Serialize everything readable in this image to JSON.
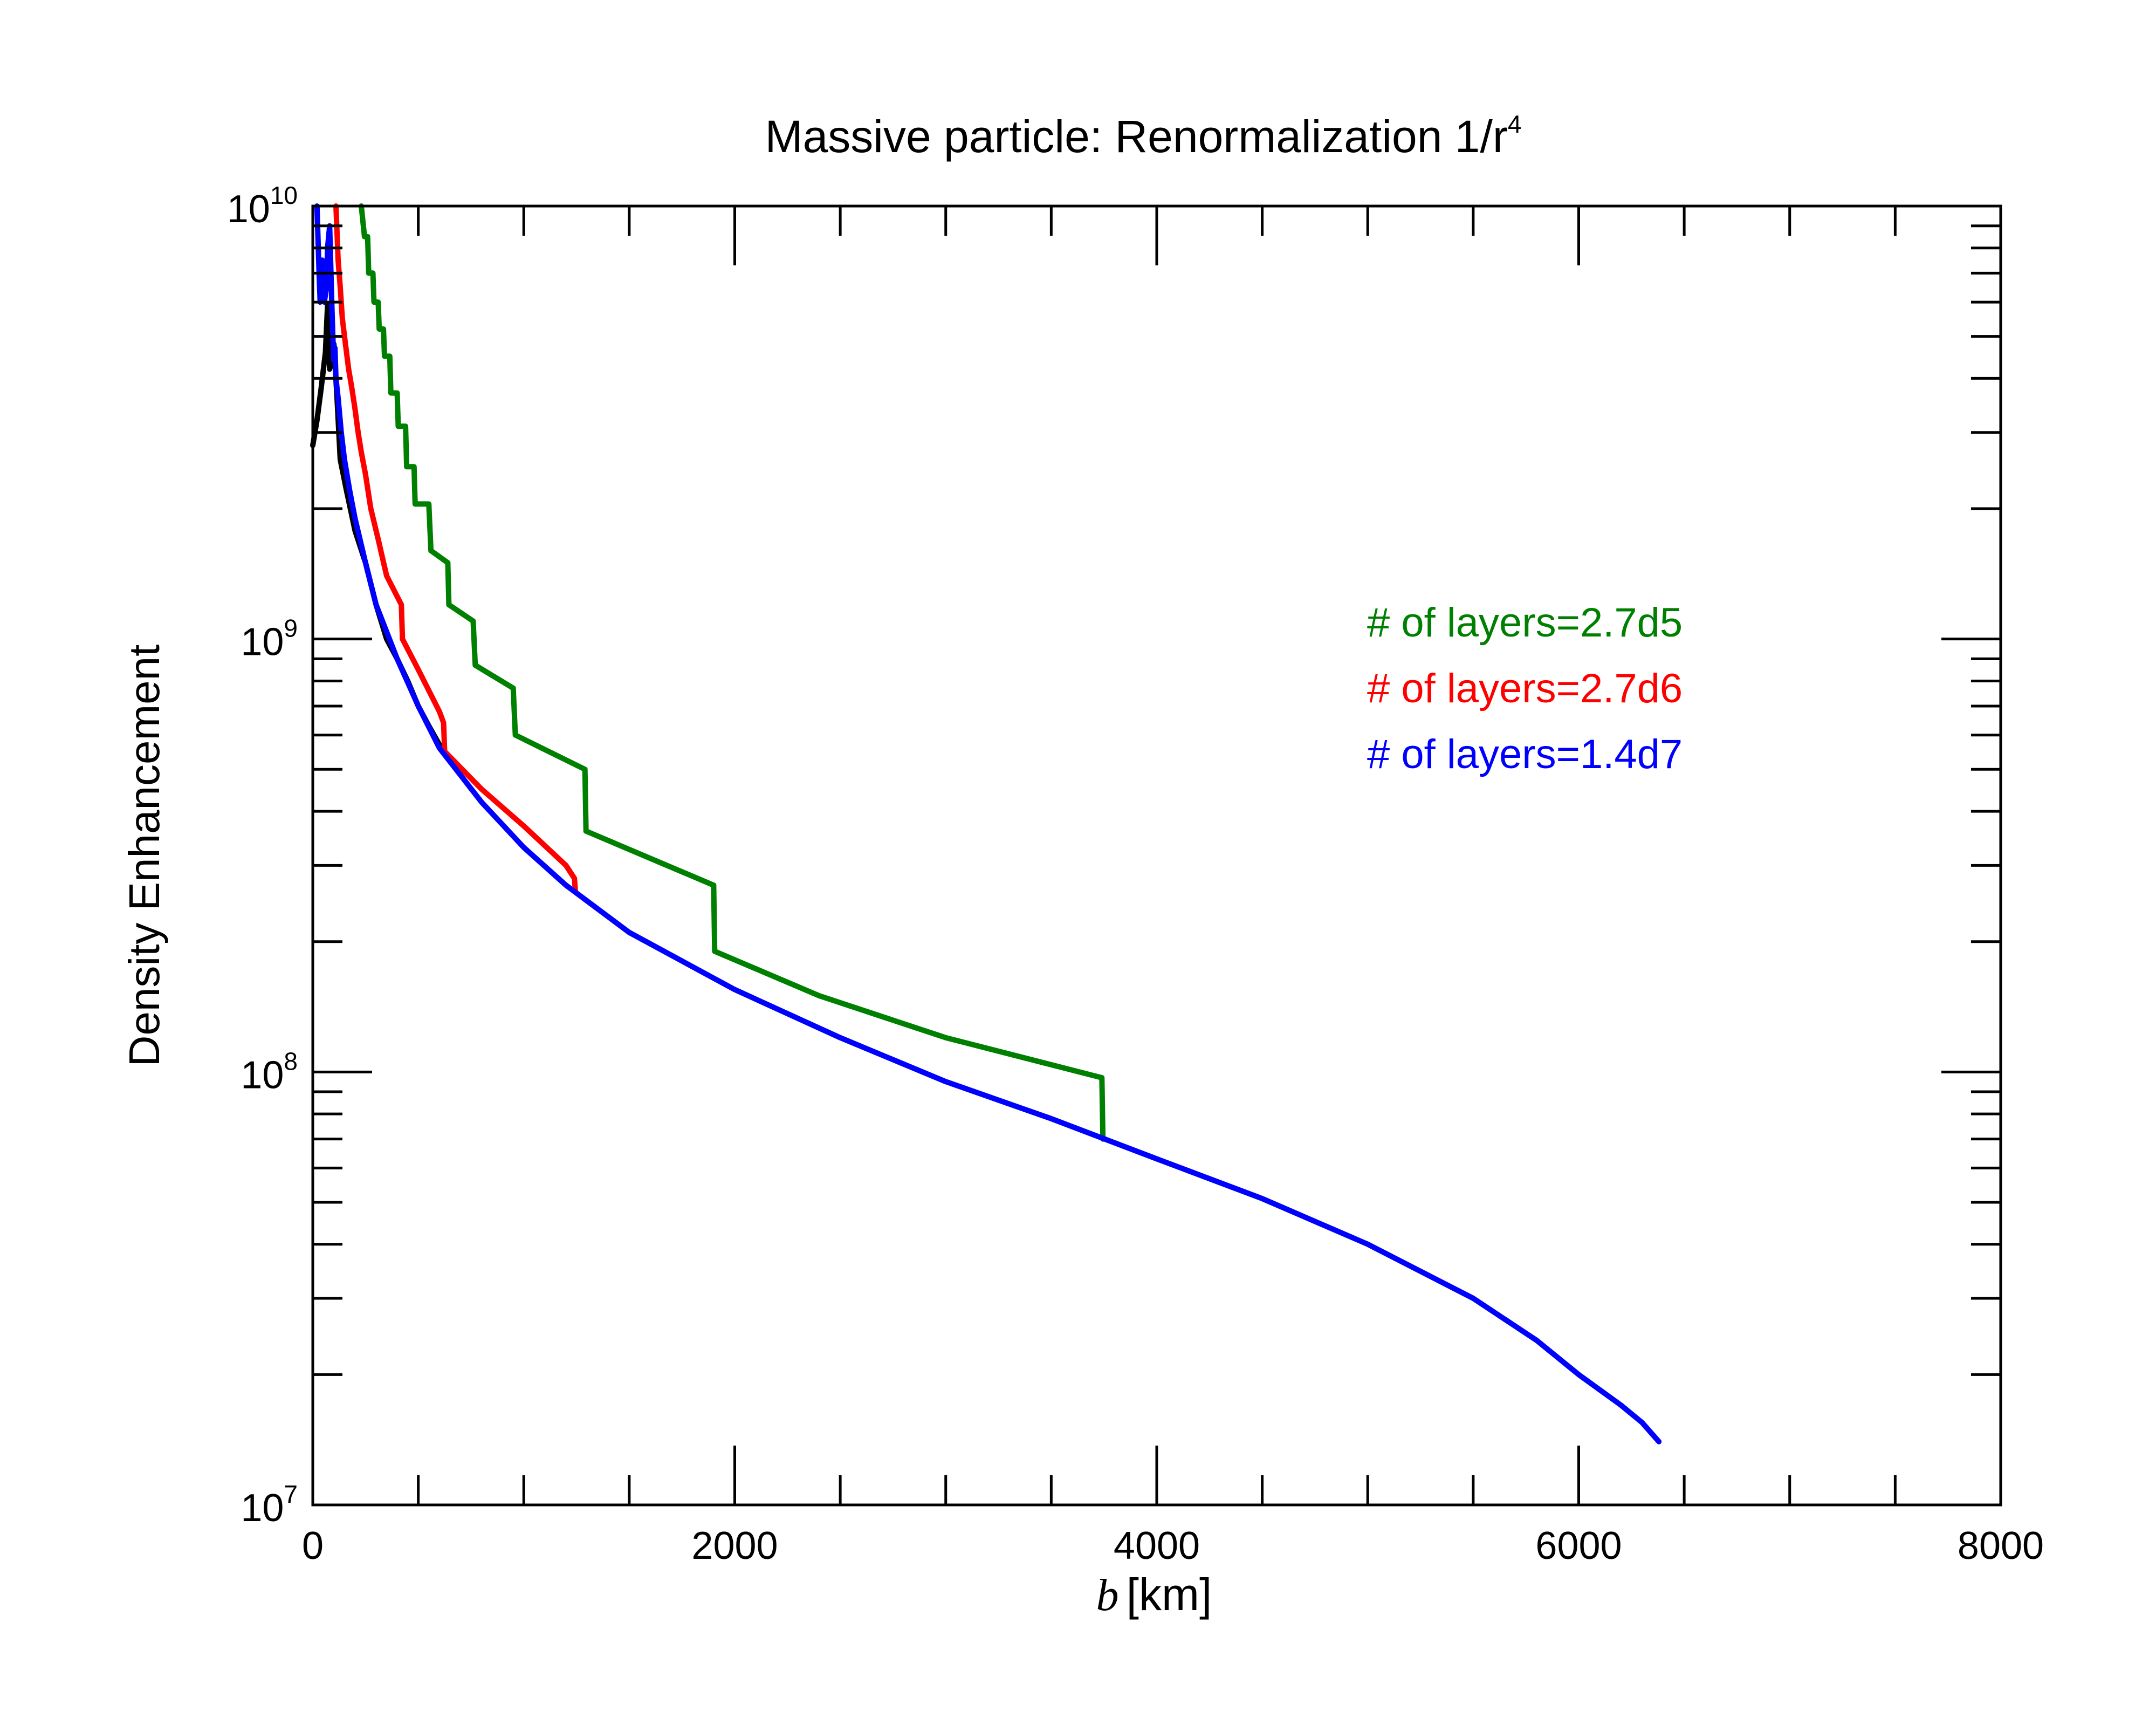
{
  "chart_data": {
    "type": "line",
    "title": "Massive particle: Renormalization 1/r",
    "title_superscript": "4",
    "xlabel_var": "b",
    "xlabel_unit": "[km]",
    "ylabel": "Density Enhancement",
    "xlim": [
      0,
      8000
    ],
    "ylim": [
      10000000,
      10000000000
    ],
    "yscale": "log",
    "x_ticks": [
      {
        "value": 0,
        "label": "0"
      },
      {
        "value": 2000,
        "label": "2000"
      },
      {
        "value": 4000,
        "label": "4000"
      },
      {
        "value": 6000,
        "label": "6000"
      },
      {
        "value": 8000,
        "label": "8000"
      }
    ],
    "y_ticks": [
      {
        "value": 10000000,
        "base": "10",
        "exp": "7"
      },
      {
        "value": 100000000,
        "base": "10",
        "exp": "8"
      },
      {
        "value": 1000000000,
        "base": "10",
        "exp": "9"
      },
      {
        "value": 10000000000,
        "base": "10",
        "exp": "10"
      }
    ],
    "legend_position": "upper-right",
    "series": [
      {
        "name": "black",
        "label": "",
        "color": "#000000",
        "points": [
          [
            0,
            2800000000
          ],
          [
            20,
            3200000000
          ],
          [
            40,
            3800000000
          ],
          [
            60,
            4600000000
          ],
          [
            70,
            5900000000
          ],
          [
            80,
            4200000000
          ],
          [
            100,
            4800000000
          ],
          [
            115,
            3600000000
          ],
          [
            130,
            2600000000
          ],
          [
            160,
            2200000000
          ],
          [
            200,
            1780000000
          ],
          [
            250,
            1500000000
          ],
          [
            300,
            1200000000
          ],
          [
            350,
            1000000000
          ],
          [
            400,
            900000000
          ],
          [
            450,
            800000000
          ],
          [
            500,
            700000000
          ],
          [
            550,
            630000000
          ],
          [
            600,
            570000000
          ]
        ]
      },
      {
        "name": "green",
        "label": "# of layers=2.7d5",
        "color": "#008000",
        "points": [
          [
            230,
            10000000000
          ],
          [
            245,
            8500000000
          ],
          [
            260,
            8500000000
          ],
          [
            265,
            7000000000
          ],
          [
            285,
            7000000000
          ],
          [
            290,
            6000000000
          ],
          [
            310,
            6000000000
          ],
          [
            315,
            5200000000
          ],
          [
            335,
            5200000000
          ],
          [
            340,
            4500000000
          ],
          [
            365,
            4500000000
          ],
          [
            370,
            3700000000
          ],
          [
            400,
            3700000000
          ],
          [
            405,
            3100000000
          ],
          [
            440,
            3100000000
          ],
          [
            445,
            2500000000
          ],
          [
            480,
            2500000000
          ],
          [
            485,
            2050000000
          ],
          [
            550,
            2050000000
          ],
          [
            560,
            1600000000
          ],
          [
            640,
            1500000000
          ],
          [
            645,
            1200000000
          ],
          [
            760,
            1100000000
          ],
          [
            770,
            870000000
          ],
          [
            950,
            770000000
          ],
          [
            960,
            600000000
          ],
          [
            1290,
            500000000
          ],
          [
            1295,
            360000000
          ],
          [
            1900,
            270000000
          ],
          [
            1905,
            190000000
          ],
          [
            2400,
            150000000
          ],
          [
            3000,
            120000000
          ],
          [
            3740,
            97000000
          ],
          [
            3745,
            70000000
          ]
        ]
      },
      {
        "name": "red",
        "label": "# of layers=2.7d6",
        "color": "#ff0000",
        "points": [
          [
            110,
            10000000000
          ],
          [
            120,
            7500000000
          ],
          [
            130,
            6500000000
          ],
          [
            140,
            5500000000
          ],
          [
            155,
            4800000000
          ],
          [
            170,
            4200000000
          ],
          [
            185,
            3800000000
          ],
          [
            200,
            3400000000
          ],
          [
            215,
            3000000000
          ],
          [
            230,
            2700000000
          ],
          [
            250,
            2400000000
          ],
          [
            275,
            2000000000
          ],
          [
            310,
            1700000000
          ],
          [
            350,
            1400000000
          ],
          [
            420,
            1200000000
          ],
          [
            425,
            1000000000
          ],
          [
            500,
            850000000
          ],
          [
            600,
            680000000
          ],
          [
            620,
            640000000
          ],
          [
            625,
            550000000
          ],
          [
            800,
            450000000
          ],
          [
            1000,
            370000000
          ],
          [
            1200,
            300000000
          ],
          [
            1240,
            280000000
          ],
          [
            1245,
            260000000
          ]
        ]
      },
      {
        "name": "blue",
        "label": "# of layers=1.4d7",
        "color": "#0000ff",
        "points": [
          [
            20,
            10000000000
          ],
          [
            30,
            7000000000
          ],
          [
            35,
            6000000000
          ],
          [
            45,
            7500000000
          ],
          [
            55,
            6000000000
          ],
          [
            65,
            6500000000
          ],
          [
            70,
            8000000000
          ],
          [
            80,
            9000000000
          ],
          [
            90,
            6000000000
          ],
          [
            95,
            5000000000
          ],
          [
            100,
            4400000000
          ],
          [
            105,
            4700000000
          ],
          [
            110,
            4000000000
          ],
          [
            120,
            3600000000
          ],
          [
            135,
            3000000000
          ],
          [
            150,
            2600000000
          ],
          [
            175,
            2200000000
          ],
          [
            200,
            1900000000
          ],
          [
            250,
            1500000000
          ],
          [
            300,
            1200000000
          ],
          [
            400,
            900000000
          ],
          [
            500,
            700000000
          ],
          [
            600,
            560000000
          ],
          [
            800,
            420000000
          ],
          [
            1000,
            330000000
          ],
          [
            1200,
            270000000
          ],
          [
            1500,
            210000000
          ],
          [
            2000,
            155000000
          ],
          [
            2500,
            120000000
          ],
          [
            3000,
            95000000
          ],
          [
            3500,
            78000000
          ],
          [
            4000,
            63000000
          ],
          [
            4500,
            51000000
          ],
          [
            5000,
            40000000
          ],
          [
            5500,
            30000000
          ],
          [
            5800,
            24000000
          ],
          [
            6000,
            20000000
          ],
          [
            6200,
            17000000
          ],
          [
            6300,
            15500000
          ],
          [
            6380,
            14000000
          ]
        ]
      }
    ]
  }
}
